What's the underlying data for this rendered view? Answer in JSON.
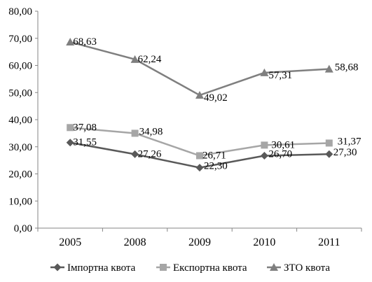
{
  "chart_data": {
    "type": "line",
    "categories": [
      "2005",
      "2008",
      "2009",
      "2010",
      "2011"
    ],
    "ylim": [
      0,
      80
    ],
    "yticks": [
      "0,00",
      "10,00",
      "20,00",
      "30,00",
      "40,00",
      "50,00",
      "60,00",
      "70,00",
      "80,00"
    ],
    "grid": false,
    "legend_position": "bottom",
    "series": [
      {
        "name": "Імпортна квота",
        "marker": "diamond",
        "color": "#595959",
        "values": [
          31.55,
          27.26,
          22.3,
          26.7,
          27.3
        ],
        "labels": [
          "31,55",
          "27,26",
          "22,30",
          "26,70",
          "27,30"
        ]
      },
      {
        "name": "Експортна квота",
        "marker": "square",
        "color": "#a6a6a6",
        "values": [
          37.08,
          34.98,
          26.71,
          30.61,
          31.37
        ],
        "labels": [
          "37,08",
          "34,98",
          "26,71",
          "30,61",
          "31,37"
        ]
      },
      {
        "name": "ЗТО квота",
        "marker": "triangle",
        "color": "#7f7f7f",
        "values": [
          68.63,
          62.24,
          49.02,
          57.31,
          58.68
        ],
        "labels": [
          "68,63",
          "62,24",
          "49,02",
          "57,31",
          "58,68"
        ]
      }
    ]
  }
}
